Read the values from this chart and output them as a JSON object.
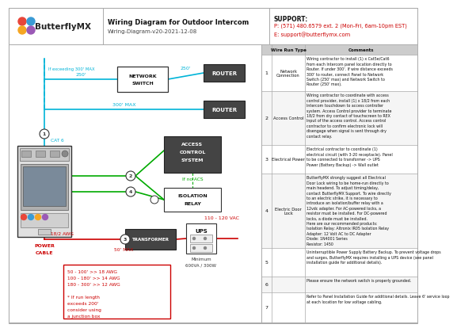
{
  "title": "Wiring Diagram for Outdoor Intercom",
  "subtitle": "Wiring-Diagram-v20-2021-12-08",
  "logo_text": "ButterflyMX",
  "support_line1": "SUPPORT:",
  "support_line2": "P: (571) 480.6579 ext. 2 (Mon-Fri, 6am-10pm EST)",
  "support_line3": "E: support@butterflymx.com",
  "bg_color": "#ffffff",
  "cyan_color": "#00b4d8",
  "green_color": "#00aa00",
  "red_color": "#cc0000",
  "dark_box": "#444444",
  "wire_rows": [
    {
      "num": "1",
      "type": "Network\nConnection",
      "comment": "Wiring contractor to install (1) x Cat5e/Cat6\nfrom each Intercom panel location directly to\nRouter. If under 300'. If wire distance exceeds\n300' to router, connect Panel to Network\nSwitch (250' max) and Network Switch to\nRouter (250' max)."
    },
    {
      "num": "2",
      "type": "Access Control",
      "comment": "Wiring contractor to coordinate with access\ncontrol provider, install (1) x 18/2 from each\nIntercom touchdown to access controller\nsystem. Access Control provider to terminate\n18/2 from dry contact of touchscreen to REX\nInput of the access control. Access control\ncontractor to confirm electronic lock will\ndisengage when signal is sent through dry\ncontact relay."
    },
    {
      "num": "3",
      "type": "Electrical Power",
      "comment": "Electrical contractor to coordinate (1)\nelectrical circuit (with 3-20 receptacle). Panel\nto be connected to transformer -> UPS\nPower (Battery Backup) -> Wall outlet"
    },
    {
      "num": "4",
      "type": "Electric Door\nLock",
      "comment": "ButterflyMX strongly suggest all Electrical\nDoor Lock wiring to be home-run directly to\nmain headend. To adjust timing/delay,\ncontact ButterflyMX Support. To wire directly\nto an electric strike, it is necessary to\nintroduce an isolation/buffer relay with a\n12vdc adapter. For AC-powered locks, a\nresistor must be installed. For DC-powered\nlocks, a diode must be installed.\nHere are our recommended products:\nIsolation Relay: Altronix IR05 Isolation Relay\nAdapter: 12 Volt AC to DC Adapter\nDiode: 1N4001 Series\nResistor: 1450"
    },
    {
      "num": "5",
      "type": "",
      "comment": "Uninterruptible Power Supply Battery Backup. To prevent voltage drops\nand surges, ButterflyMX requires installing a UPS device (see panel\ninstallation guide for additional details)."
    },
    {
      "num": "6",
      "type": "",
      "comment": "Please ensure the network switch is properly grounded."
    },
    {
      "num": "7",
      "type": "",
      "comment": "Refer to Panel Installation Guide for additional details. Leave 6' service loop\nat each location for low voltage cabling."
    }
  ]
}
